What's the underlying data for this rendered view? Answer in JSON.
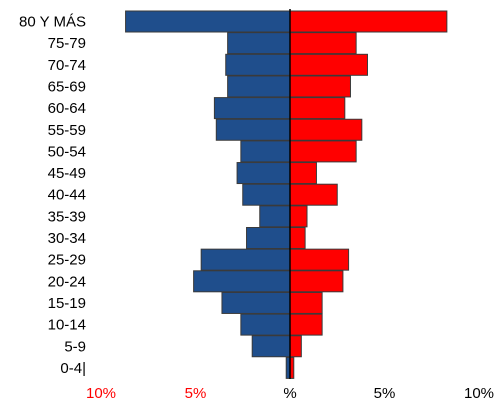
{
  "chart_data": {
    "type": "bar",
    "orientation": "horizontal-pyramid",
    "categories": [
      "80 Y MÁS",
      "75-79",
      "70-74",
      "65-69",
      "60-64",
      "55-59",
      "50-54",
      "45-49",
      "40-44",
      "35-39",
      "30-34",
      "25-29",
      "20-24",
      "15-19",
      "10-14",
      "5-9",
      "0-4|"
    ],
    "series": [
      {
        "values": [
          -8.7,
          -3.3,
          -3.4,
          -3.3,
          -4.0,
          -3.9,
          -2.6,
          -2.8,
          -2.5,
          -1.6,
          -2.3,
          -4.7,
          -5.1,
          -3.6,
          -2.6,
          -2.0,
          -0.2
        ],
        "color": "#1f4e8c"
      },
      {
        "values": [
          8.3,
          3.5,
          4.1,
          3.2,
          2.9,
          3.8,
          3.5,
          1.4,
          2.5,
          0.9,
          0.8,
          3.1,
          2.8,
          1.7,
          1.7,
          0.6,
          0.2
        ],
        "color": "#ff0000"
      }
    ],
    "xlim": [
      -10,
      10
    ],
    "xticks": [
      {
        "value": -10,
        "label": "10%",
        "color": "#ff0000"
      },
      {
        "value": -5,
        "label": "5%",
        "color": "#ff0000"
      },
      {
        "value": 0,
        "label": "%",
        "color": "#000000"
      },
      {
        "value": 5,
        "label": "5%",
        "color": "#000000"
      },
      {
        "value": 10,
        "label": "10%",
        "color": "#000000"
      }
    ],
    "title": "",
    "xlabel": "",
    "ylabel": "",
    "grid": false,
    "legend": "none"
  }
}
